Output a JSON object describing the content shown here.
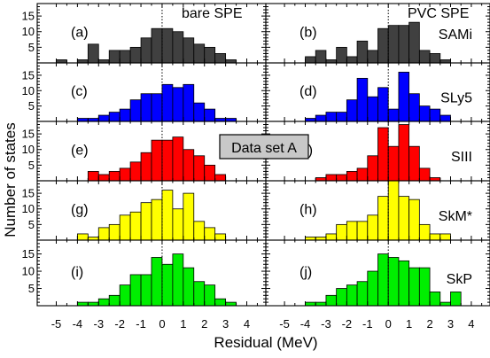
{
  "figure": {
    "xlabel": "Residual (MeV)",
    "ylabel": "Number of states",
    "col_titles": [
      "bare SPE",
      "PVC SPE"
    ],
    "dataset_label": "Data set A",
    "x_ticks": [
      -5,
      -4,
      -3,
      -2,
      -1,
      0,
      1,
      2,
      3,
      4
    ],
    "y_ticks": [
      5,
      10,
      15
    ]
  },
  "chart_data": [
    {
      "type": "bar",
      "panel": "(a)",
      "model": "",
      "column": "bare SPE",
      "color": "#404040",
      "bin_width": 0.5,
      "xlim": [
        -5.9,
        4.9
      ],
      "ylim": [
        0,
        19
      ],
      "x": [
        -4.75,
        -3.75,
        -3.25,
        -2.75,
        -2.25,
        -1.75,
        -1.25,
        -0.75,
        -0.25,
        0.25,
        0.75,
        1.25,
        1.75,
        2.25,
        2.75,
        3.25
      ],
      "values": [
        1,
        1,
        6,
        1,
        4,
        4,
        5,
        8,
        11,
        11,
        10,
        8,
        6,
        5,
        3,
        1
      ]
    },
    {
      "type": "bar",
      "panel": "(b)",
      "model": "SAMi",
      "column": "PVC SPE",
      "color": "#404040",
      "bin_width": 0.5,
      "xlim": [
        -5.9,
        4.9
      ],
      "ylim": [
        0,
        19
      ],
      "x": [
        -3.75,
        -3.25,
        -2.75,
        -2.25,
        -1.75,
        -1.25,
        -0.75,
        -0.25,
        0.25,
        0.75,
        1.25,
        1.75,
        2.25,
        2.75
      ],
      "values": [
        2,
        4,
        1,
        5,
        2,
        7,
        4,
        11,
        12,
        12,
        13,
        4,
        3,
        1
      ]
    },
    {
      "type": "bar",
      "panel": "(c)",
      "model": "",
      "column": "bare SPE",
      "color": "#0000ff",
      "bin_width": 0.5,
      "xlim": [
        -5.9,
        4.9
      ],
      "ylim": [
        0,
        19
      ],
      "x": [
        -3.75,
        -3.25,
        -2.75,
        -2.25,
        -1.75,
        -1.25,
        -0.75,
        -0.25,
        0.25,
        0.75,
        1.25,
        1.75,
        2.25,
        2.75,
        3.25
      ],
      "values": [
        1,
        1,
        2,
        3,
        4,
        7,
        9,
        9,
        12,
        11,
        12,
        6,
        4,
        1,
        1
      ]
    },
    {
      "type": "bar",
      "panel": "(d)",
      "model": "SLy5",
      "column": "PVC SPE",
      "color": "#0000ff",
      "bin_width": 0.5,
      "xlim": [
        -5.9,
        4.9
      ],
      "ylim": [
        0,
        19
      ],
      "x": [
        -3.75,
        -3.25,
        -2.75,
        -2.25,
        -1.75,
        -1.25,
        -0.75,
        -0.25,
        0.25,
        0.75,
        1.25,
        1.75,
        2.25,
        2.75
      ],
      "values": [
        1,
        2,
        3,
        3,
        7,
        14,
        8,
        11,
        4,
        16,
        9,
        5,
        4,
        2
      ]
    },
    {
      "type": "bar",
      "panel": "(e)",
      "model": "",
      "column": "bare SPE",
      "color": "#ff0000",
      "bin_width": 0.5,
      "xlim": [
        -5.9,
        4.9
      ],
      "ylim": [
        0,
        19
      ],
      "x": [
        -3.25,
        -2.75,
        -2.25,
        -1.75,
        -1.25,
        -0.75,
        -0.25,
        0.25,
        0.75,
        1.25,
        1.75,
        2.25,
        2.75
      ],
      "values": [
        3,
        2,
        3,
        4,
        6,
        9,
        13,
        13,
        14,
        10,
        8,
        5,
        2
      ]
    },
    {
      "type": "bar",
      "panel": "(f)",
      "model": "SIII",
      "column": "PVC SPE",
      "color": "#ff0000",
      "bin_width": 0.5,
      "xlim": [
        -5.9,
        4.9
      ],
      "ylim": [
        0,
        19
      ],
      "x": [
        -3.25,
        -2.75,
        -2.25,
        -1.75,
        -1.25,
        -0.75,
        -0.25,
        0.25,
        0.75,
        1.25,
        1.75,
        2.25
      ],
      "values": [
        1,
        2,
        2,
        3,
        4,
        8,
        17,
        11,
        18,
        11,
        4,
        1
      ]
    },
    {
      "type": "bar",
      "panel": "(g)",
      "model": "",
      "column": "bare SPE",
      "color": "#ffff00",
      "bin_width": 0.5,
      "xlim": [
        -5.9,
        4.9
      ],
      "ylim": [
        0,
        19
      ],
      "x": [
        -3.75,
        -3.25,
        -2.75,
        -2.25,
        -1.75,
        -1.25,
        -0.75,
        -0.25,
        0.25,
        0.75,
        1.25,
        1.75,
        2.25,
        2.75
      ],
      "values": [
        2,
        1,
        4,
        5,
        8,
        9,
        12,
        13,
        16,
        10,
        15,
        6,
        4,
        2
      ]
    },
    {
      "type": "bar",
      "panel": "(h)",
      "model": "SkM*",
      "column": "PVC SPE",
      "color": "#ffff00",
      "bin_width": 0.5,
      "xlim": [
        -5.9,
        4.9
      ],
      "ylim": [
        0,
        19
      ],
      "x": [
        -3.75,
        -3.25,
        -2.75,
        -2.25,
        -1.75,
        -1.25,
        -0.75,
        -0.25,
        0.25,
        0.75,
        1.25,
        1.75,
        2.25,
        2.75
      ],
      "values": [
        1,
        1,
        2,
        5,
        6,
        6,
        8,
        14,
        19,
        14,
        13,
        5,
        2,
        2
      ]
    },
    {
      "type": "bar",
      "panel": "(i)",
      "model": "",
      "column": "bare SPE",
      "color": "#00ee00",
      "bin_width": 0.5,
      "xlim": [
        -5.9,
        4.9
      ],
      "ylim": [
        0,
        19
      ],
      "x": [
        -3.75,
        -3.25,
        -2.75,
        -2.25,
        -1.75,
        -1.25,
        -0.75,
        -0.25,
        0.25,
        0.75,
        1.25,
        1.75,
        2.25,
        2.75,
        3.25
      ],
      "values": [
        1,
        1,
        2,
        3,
        6,
        9,
        9,
        14,
        12,
        15,
        11,
        7,
        6,
        2,
        1
      ]
    },
    {
      "type": "bar",
      "panel": "(j)",
      "model": "SkP",
      "column": "PVC SPE",
      "color": "#00ee00",
      "bin_width": 0.5,
      "xlim": [
        -5.9,
        4.9
      ],
      "ylim": [
        0,
        19
      ],
      "x": [
        -3.75,
        -3.25,
        -2.75,
        -2.25,
        -1.75,
        -1.25,
        -0.75,
        -0.25,
        0.25,
        0.75,
        1.25,
        1.75,
        2.25,
        2.75,
        3.25
      ],
      "values": [
        1,
        1,
        3,
        5,
        6,
        7,
        10,
        15,
        14,
        13,
        11,
        11,
        4,
        1,
        4
      ]
    }
  ]
}
